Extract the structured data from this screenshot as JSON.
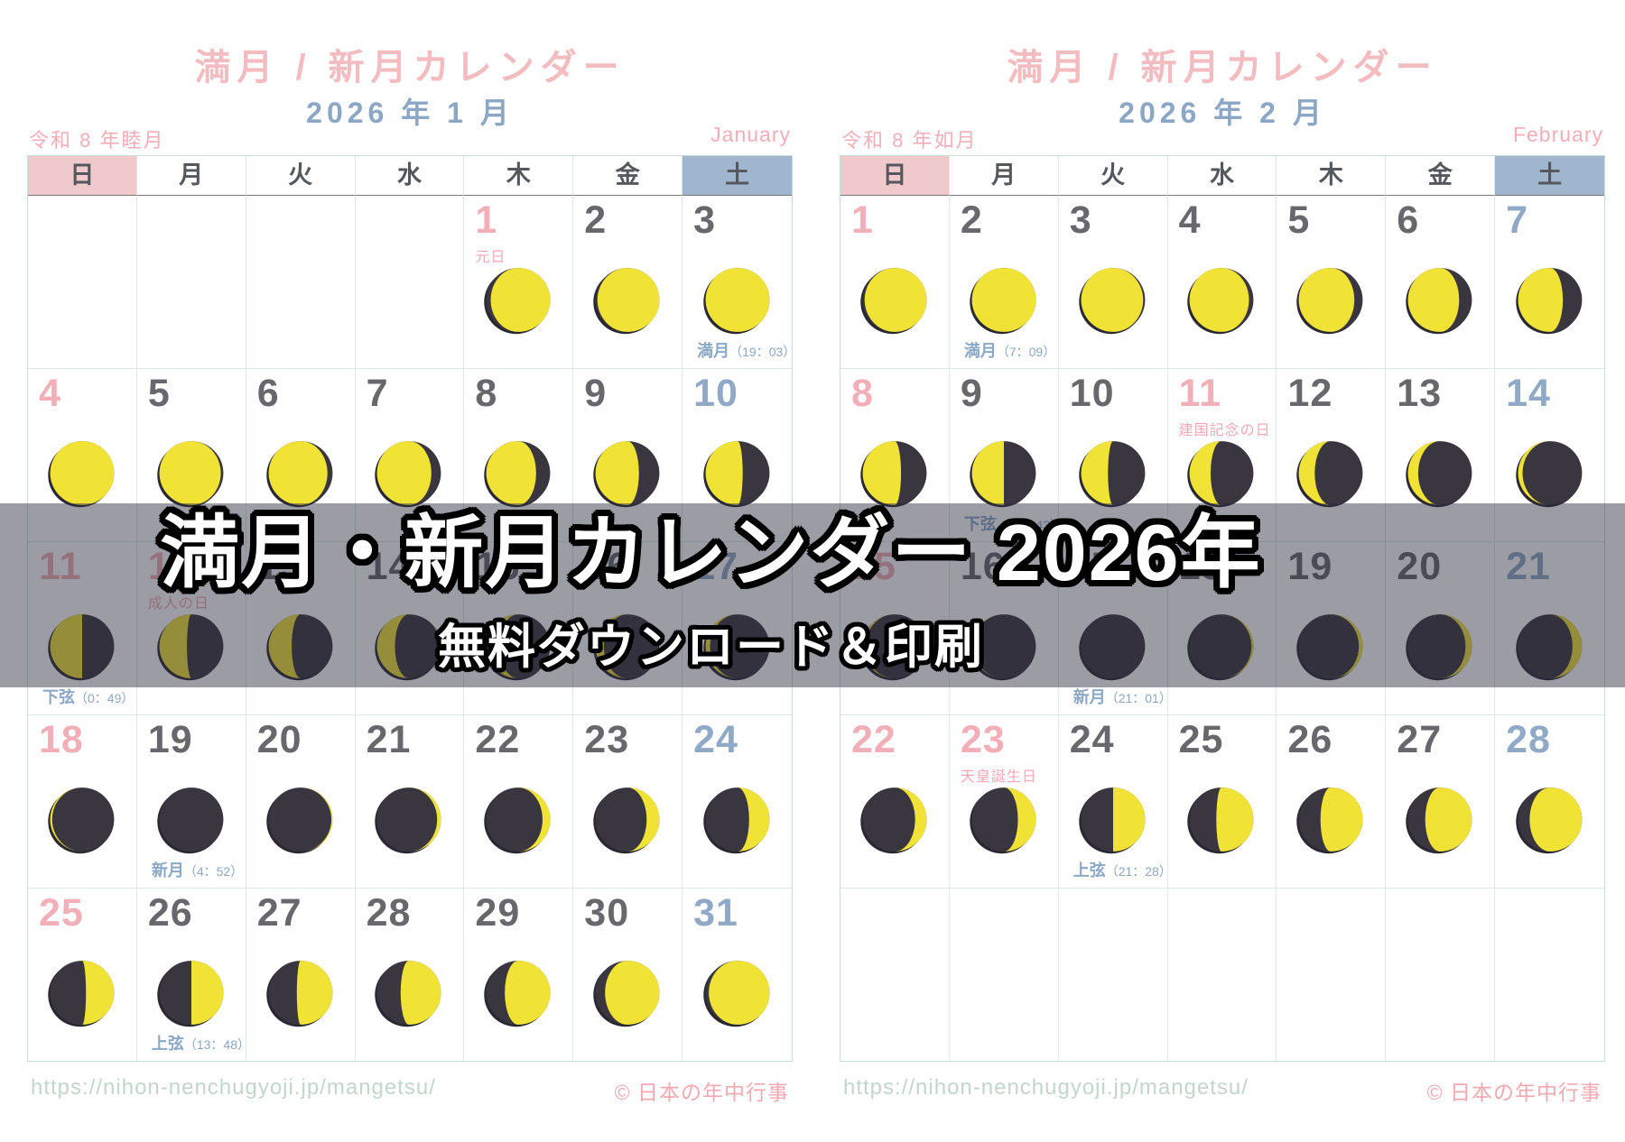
{
  "colors": {
    "moon_lit": "#f1e335",
    "moon_dark": "#39363f",
    "moon_shadow": "#2a2833",
    "accent_pink": "#f2afb8",
    "accent_blue": "#8fa9c7",
    "overlay_bg": "rgba(44,44,62,0.47)"
  },
  "weekdays": [
    "日",
    "月",
    "火",
    "水",
    "木",
    "金",
    "土"
  ],
  "overlay": {
    "line1": "満月・新月カレンダー 2026年",
    "line2": "無料ダウンロード＆印刷"
  },
  "calendars": [
    {
      "title": "満月 / 新月カレンダー",
      "subtitle": "2026 年 1 月",
      "era": "令和 8 年睦月",
      "month_en": "January",
      "footer_url": "https://nihon-nenchugyoji.jp/mangetsu/",
      "footer_credit": "© 日本の年中行事",
      "weeks": [
        [
          null,
          null,
          null,
          null,
          {
            "d": 1,
            "c": "hol",
            "h": "元日",
            "moon": {
              "lit": 0.93,
              "side": "right"
            }
          },
          {
            "d": 2,
            "c": "wd",
            "moon": {
              "lit": 0.97,
              "side": "right"
            }
          },
          {
            "d": 3,
            "c": "wd",
            "moon": {
              "lit": 1.0,
              "side": "right"
            },
            "note": {
              "label": "満月",
              "time": "（19：03）"
            }
          }
        ],
        [
          {
            "d": 4,
            "c": "sun",
            "moon": {
              "lit": 0.99,
              "side": "left"
            }
          },
          {
            "d": 5,
            "c": "wd",
            "moon": {
              "lit": 0.96,
              "side": "left"
            }
          },
          {
            "d": 6,
            "c": "wd",
            "moon": {
              "lit": 0.92,
              "side": "left"
            }
          },
          {
            "d": 7,
            "c": "wd",
            "moon": {
              "lit": 0.85,
              "side": "left"
            }
          },
          {
            "d": 8,
            "c": "wd",
            "moon": {
              "lit": 0.78,
              "side": "left"
            }
          },
          {
            "d": 9,
            "c": "wd",
            "moon": {
              "lit": 0.68,
              "side": "left"
            }
          },
          {
            "d": 10,
            "c": "sat",
            "moon": {
              "lit": 0.58,
              "side": "left"
            }
          }
        ],
        [
          {
            "d": 11,
            "c": "sun",
            "moon": {
              "lit": 0.5,
              "side": "left"
            },
            "note": {
              "label": "下弦",
              "time": "（0：49）"
            }
          },
          {
            "d": 12,
            "c": "hol",
            "h": "成人の日",
            "moon": {
              "lit": 0.43,
              "side": "left"
            }
          },
          {
            "d": 13,
            "c": "wd",
            "moon": {
              "lit": 0.36,
              "side": "left"
            }
          },
          {
            "d": 14,
            "c": "wd",
            "moon": {
              "lit": 0.28,
              "side": "left"
            }
          },
          {
            "d": 15,
            "c": "wd",
            "moon": {
              "lit": 0.2,
              "side": "left"
            }
          },
          {
            "d": 16,
            "c": "wd",
            "moon": {
              "lit": 0.13,
              "side": "left"
            }
          },
          {
            "d": 17,
            "c": "sat",
            "moon": {
              "lit": 0.07,
              "side": "left"
            }
          }
        ],
        [
          {
            "d": 18,
            "c": "sun",
            "moon": {
              "lit": 0.03,
              "side": "left"
            }
          },
          {
            "d": 19,
            "c": "wd",
            "moon": {
              "lit": 0.0,
              "side": "right"
            },
            "note": {
              "label": "新月",
              "time": "（4：52）"
            }
          },
          {
            "d": 20,
            "c": "wd",
            "moon": {
              "lit": 0.02,
              "side": "right"
            }
          },
          {
            "d": 21,
            "c": "wd",
            "moon": {
              "lit": 0.06,
              "side": "right"
            }
          },
          {
            "d": 22,
            "c": "wd",
            "moon": {
              "lit": 0.12,
              "side": "right"
            }
          },
          {
            "d": 23,
            "c": "wd",
            "moon": {
              "lit": 0.2,
              "side": "right"
            }
          },
          {
            "d": 24,
            "c": "sat",
            "moon": {
              "lit": 0.32,
              "side": "right"
            }
          }
        ],
        [
          {
            "d": 25,
            "c": "sun",
            "moon": {
              "lit": 0.44,
              "side": "right"
            }
          },
          {
            "d": 26,
            "c": "wd",
            "moon": {
              "lit": 0.5,
              "side": "right"
            },
            "note": {
              "label": "上弦",
              "time": "（13：48）"
            }
          },
          {
            "d": 27,
            "c": "wd",
            "moon": {
              "lit": 0.56,
              "side": "right"
            }
          },
          {
            "d": 28,
            "c": "wd",
            "moon": {
              "lit": 0.63,
              "side": "right"
            }
          },
          {
            "d": 29,
            "c": "wd",
            "moon": {
              "lit": 0.71,
              "side": "right"
            }
          },
          {
            "d": 30,
            "c": "wd",
            "moon": {
              "lit": 0.85,
              "side": "right"
            }
          },
          {
            "d": 31,
            "c": "sat",
            "moon": {
              "lit": 0.95,
              "side": "right"
            }
          }
        ]
      ]
    },
    {
      "title": "満月 / 新月カレンダー",
      "subtitle": "2026 年 2 月",
      "era": "令和 8 年如月",
      "month_en": "February",
      "footer_url": "https://nihon-nenchugyoji.jp/mangetsu/",
      "footer_credit": "© 日本の年中行事",
      "weeks": [
        [
          {
            "d": 1,
            "c": "sun",
            "moon": {
              "lit": 0.97,
              "side": "right"
            }
          },
          {
            "d": 2,
            "c": "wd",
            "moon": {
              "lit": 1.0,
              "side": "right"
            },
            "note": {
              "label": "満月",
              "time": "（7：09）"
            }
          },
          {
            "d": 3,
            "c": "wd",
            "moon": {
              "lit": 0.97,
              "side": "left"
            }
          },
          {
            "d": 4,
            "c": "wd",
            "moon": {
              "lit": 0.93,
              "side": "left"
            }
          },
          {
            "d": 5,
            "c": "wd",
            "moon": {
              "lit": 0.87,
              "side": "left"
            }
          },
          {
            "d": 6,
            "c": "wd",
            "moon": {
              "lit": 0.8,
              "side": "left"
            }
          },
          {
            "d": 7,
            "c": "sat",
            "moon": {
              "lit": 0.7,
              "side": "left"
            }
          }
        ],
        [
          {
            "d": 8,
            "c": "sun",
            "moon": {
              "lit": 0.6,
              "side": "left"
            }
          },
          {
            "d": 9,
            "c": "wd",
            "moon": {
              "lit": 0.5,
              "side": "left"
            },
            "note": {
              "label": "下弦",
              "time": "（21：43）"
            }
          },
          {
            "d": 10,
            "c": "wd",
            "moon": {
              "lit": 0.42,
              "side": "left"
            }
          },
          {
            "d": 11,
            "c": "hol",
            "h": "建国記念の日",
            "moon": {
              "lit": 0.33,
              "side": "left"
            }
          },
          {
            "d": 12,
            "c": "wd",
            "moon": {
              "lit": 0.25,
              "side": "left"
            }
          },
          {
            "d": 13,
            "c": "wd",
            "moon": {
              "lit": 0.16,
              "side": "left"
            }
          },
          {
            "d": 14,
            "c": "sat",
            "moon": {
              "lit": 0.07,
              "side": "left"
            }
          }
        ],
        [
          {
            "d": 15,
            "c": "sun",
            "moon": {
              "lit": 0.04,
              "side": "left"
            }
          },
          {
            "d": 16,
            "c": "wd",
            "moon": {
              "lit": 0.02,
              "side": "left"
            }
          },
          {
            "d": 17,
            "c": "wd",
            "moon": {
              "lit": 0.0,
              "side": "right"
            },
            "note": {
              "label": "新月",
              "time": "（21：01）"
            }
          },
          {
            "d": 18,
            "c": "wd",
            "moon": {
              "lit": 0.03,
              "side": "right"
            }
          },
          {
            "d": 19,
            "c": "wd",
            "moon": {
              "lit": 0.06,
              "side": "right"
            }
          },
          {
            "d": 20,
            "c": "wd",
            "moon": {
              "lit": 0.1,
              "side": "right"
            }
          },
          {
            "d": 21,
            "c": "sat",
            "moon": {
              "lit": 0.15,
              "side": "right"
            }
          }
        ],
        [
          {
            "d": 22,
            "c": "sun",
            "moon": {
              "lit": 0.18,
              "side": "right"
            }
          },
          {
            "d": 23,
            "c": "hol",
            "h": "天皇誕生日",
            "moon": {
              "lit": 0.28,
              "side": "right"
            }
          },
          {
            "d": 24,
            "c": "wd",
            "moon": {
              "lit": 0.5,
              "side": "right"
            },
            "note": {
              "label": "上弦",
              "time": "（21：28）"
            }
          },
          {
            "d": 25,
            "c": "wd",
            "moon": {
              "lit": 0.58,
              "side": "right"
            }
          },
          {
            "d": 26,
            "c": "wd",
            "moon": {
              "lit": 0.66,
              "side": "right"
            }
          },
          {
            "d": 27,
            "c": "wd",
            "moon": {
              "lit": 0.73,
              "side": "right"
            }
          },
          {
            "d": 28,
            "c": "sat",
            "moon": {
              "lit": 0.82,
              "side": "right"
            }
          }
        ],
        [
          null,
          null,
          null,
          null,
          null,
          null,
          null
        ]
      ]
    }
  ]
}
